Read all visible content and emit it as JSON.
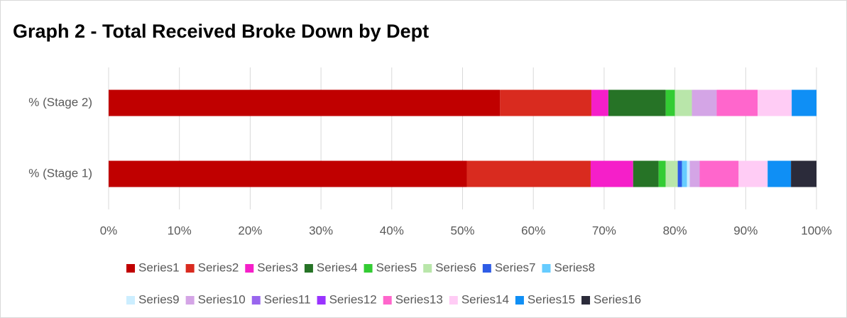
{
  "chart_data": {
    "type": "stacked_barh",
    "title": "Graph 2 - Total Received Broke Down by Dept",
    "categories": [
      "% (Stage 1)",
      "% (Stage 2)"
    ],
    "series": [
      {
        "name": "Series1",
        "color": "#c00000",
        "values": [
          50.6,
          55.3
        ]
      },
      {
        "name": "Series2",
        "color": "#d92b1f",
        "values": [
          17.5,
          12.9
        ]
      },
      {
        "name": "Series3",
        "color": "#f51fc9",
        "values": [
          6.0,
          2.4
        ]
      },
      {
        "name": "Series4",
        "color": "#267326",
        "values": [
          3.6,
          8.1
        ]
      },
      {
        "name": "Series5",
        "color": "#33cc33",
        "values": [
          1.0,
          1.3
        ]
      },
      {
        "name": "Series6",
        "color": "#b9e6aa",
        "values": [
          1.7,
          2.4
        ]
      },
      {
        "name": "Series7",
        "color": "#2e5ce6",
        "values": [
          0.6,
          0
        ]
      },
      {
        "name": "Series8",
        "color": "#66ccff",
        "values": [
          0.7,
          0
        ]
      },
      {
        "name": "Series9",
        "color": "#cceeff",
        "values": [
          0.4,
          0
        ]
      },
      {
        "name": "Series10",
        "color": "#d4a5e6",
        "values": [
          1.4,
          3.5
        ]
      },
      {
        "name": "Series11",
        "color": "#9966ee",
        "values": [
          0,
          0
        ]
      },
      {
        "name": "Series12",
        "color": "#9933ff",
        "values": [
          0,
          0
        ]
      },
      {
        "name": "Series13",
        "color": "#ff66cc",
        "values": [
          5.5,
          5.8
        ]
      },
      {
        "name": "Series14",
        "color": "#ffccf5",
        "values": [
          4.1,
          4.8
        ]
      },
      {
        "name": "Series15",
        "color": "#0f8ff5",
        "values": [
          3.3,
          3.5
        ]
      },
      {
        "name": "Series16",
        "color": "#2b2b3a",
        "values": [
          3.6,
          0
        ]
      }
    ],
    "xlim": [
      0,
      100
    ],
    "xticks": [
      {
        "value": 0,
        "label": "0%"
      },
      {
        "value": 10,
        "label": "10%"
      },
      {
        "value": 20,
        "label": "20%"
      },
      {
        "value": 30,
        "label": "30%"
      },
      {
        "value": 40,
        "label": "40%"
      },
      {
        "value": 50,
        "label": "50%"
      },
      {
        "value": 60,
        "label": "60%"
      },
      {
        "value": 70,
        "label": "70%"
      },
      {
        "value": 80,
        "label": "80%"
      },
      {
        "value": 90,
        "label": "90%"
      },
      {
        "value": 100,
        "label": "100%"
      }
    ],
    "grid": true,
    "legend": "bottom"
  }
}
